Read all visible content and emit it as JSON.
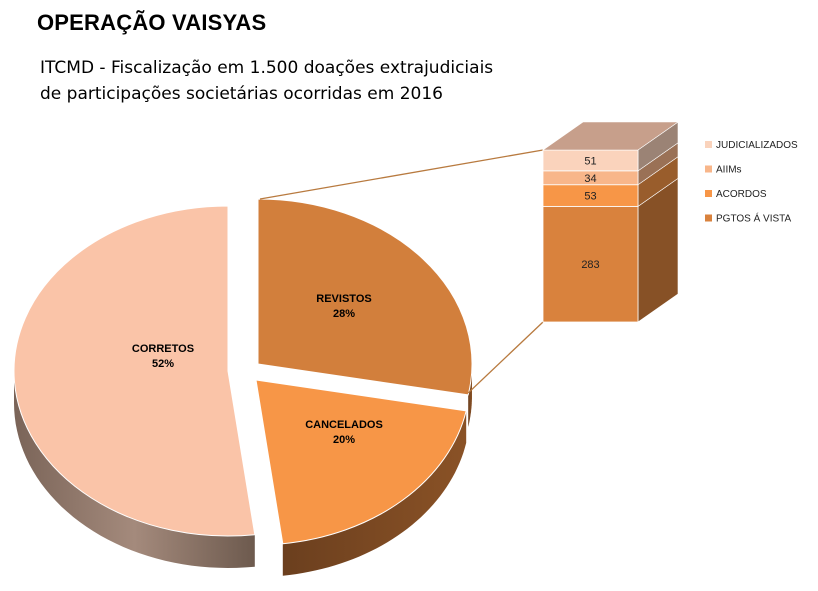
{
  "title": "OPERAÇÃO VAISYAS",
  "subtitle_lines": [
    "ITCMD - Fiscalização em 1.500 doações extrajudiciais",
    "de participações societárias ocorridas em 2016"
  ],
  "chart_data": [
    {
      "type": "pie",
      "categories": [
        "CORRETOS",
        "REVISTOS",
        "CANCELADOS"
      ],
      "values": [
        52,
        28,
        20
      ],
      "unit": "%",
      "labels": [
        "CORRETOS\n52%",
        "REVISTOS\n28%",
        "CANCELADOS\n20%"
      ],
      "colors": [
        "#FAC4A8",
        "#D27F3C",
        "#F79647"
      ],
      "exploded": true,
      "three_d": true
    },
    {
      "type": "bar",
      "stacked": true,
      "categories": [
        "REVISTOS"
      ],
      "series": [
        {
          "name": "PGTOS Á VISTA",
          "values": [
            283
          ],
          "color": "#D9823D"
        },
        {
          "name": "ACORDOS",
          "values": [
            53
          ],
          "color": "#F79647"
        },
        {
          "name": "AIIMs",
          "values": [
            34
          ],
          "color": "#F8B68A"
        },
        {
          "name": "JUDICIALIZADOS",
          "values": [
            51
          ],
          "color": "#FAD3BC"
        }
      ],
      "legend": "right",
      "three_d": true
    }
  ]
}
